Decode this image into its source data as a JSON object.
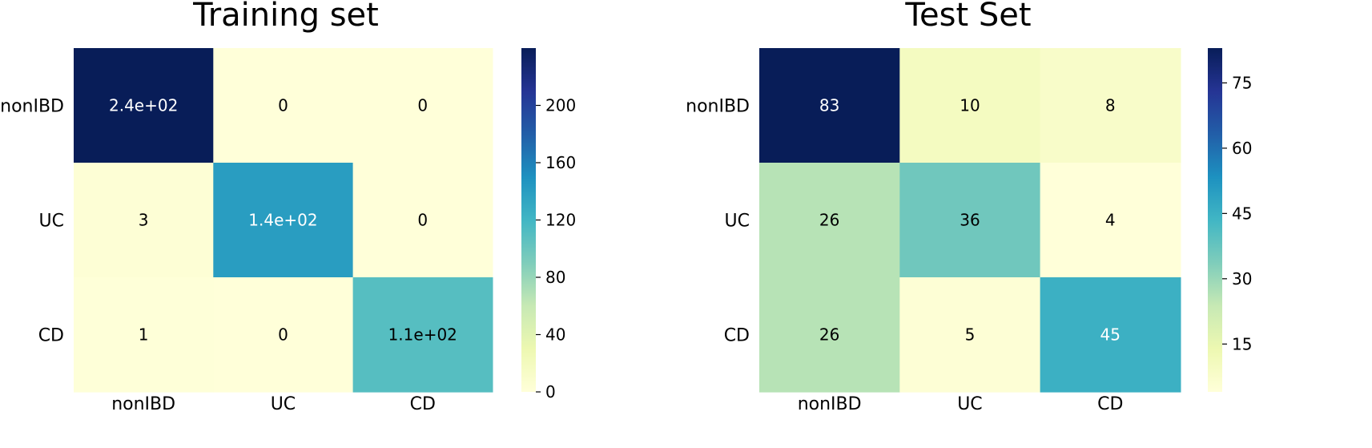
{
  "chart_data": [
    {
      "type": "heatmap",
      "title": "Training set",
      "xlabel": "",
      "ylabel": "",
      "x_categories": [
        "nonIBD",
        "UC",
        "CD"
      ],
      "y_categories": [
        "nonIBD",
        "UC",
        "CD"
      ],
      "values": [
        [
          240,
          0,
          0
        ],
        [
          3,
          140,
          0
        ],
        [
          1,
          0,
          110
        ]
      ],
      "annotations": [
        [
          "2.4e+02",
          "0",
          "0"
        ],
        [
          "3",
          "1.4e+02",
          "0"
        ],
        [
          "1",
          "0",
          "1.1e+02"
        ]
      ],
      "colormap": "YlGnBu",
      "colorbar": {
        "min": 0,
        "max": 240,
        "ticks": [
          0,
          40,
          80,
          120,
          160,
          200
        ]
      }
    },
    {
      "type": "heatmap",
      "title": "Test Set",
      "xlabel": "",
      "ylabel": "",
      "x_categories": [
        "nonIBD",
        "UC",
        "CD"
      ],
      "y_categories": [
        "nonIBD",
        "UC",
        "CD"
      ],
      "values": [
        [
          83,
          10,
          8
        ],
        [
          26,
          36,
          4
        ],
        [
          26,
          5,
          45
        ]
      ],
      "annotations": [
        [
          "83",
          "10",
          "8"
        ],
        [
          "26",
          "36",
          "4"
        ],
        [
          "26",
          "5",
          "45"
        ]
      ],
      "colormap": "YlGnBu",
      "colorbar": {
        "min": 4,
        "max": 83,
        "ticks": [
          15,
          30,
          45,
          60,
          75
        ]
      }
    }
  ],
  "colormap_stops": [
    "#ffffd9",
    "#edf8b1",
    "#c7e9b4",
    "#7fcdbb",
    "#41b6c4",
    "#1d91c0",
    "#225ea8",
    "#253494",
    "#081d58"
  ]
}
